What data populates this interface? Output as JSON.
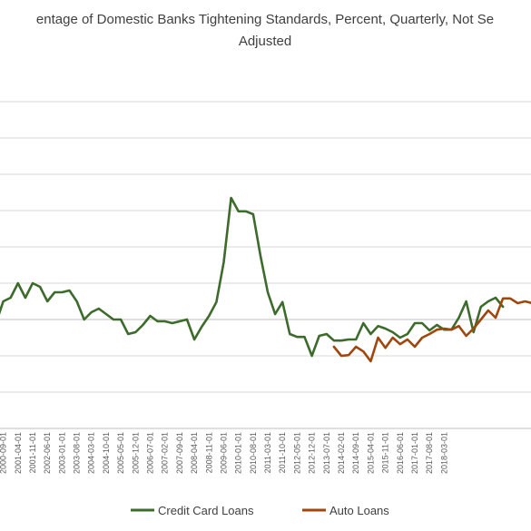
{
  "chart_data": {
    "type": "line",
    "title_lines": [
      "entage of Domestic Banks Tightening Standards, Percent, Quarterly, Not Se",
      "Adjusted"
    ],
    "xlabel": "",
    "ylabel": "",
    "x_tick_labels": [
      "2000-09-01",
      "2001-04-01",
      "2001-11-01",
      "2002-06-01",
      "2003-01-01",
      "2003-08-01",
      "2004-03-01",
      "2004-10-01",
      "2005-05-01",
      "2005-12-01",
      "2006-07-01",
      "2007-02-01",
      "2007-09-01",
      "2008-04-01",
      "2008-11-01",
      "2009-06-01",
      "2010-01-01",
      "2010-08-01",
      "2011-03-01",
      "2011-10-01",
      "2012-05-01",
      "2012-12-01",
      "2013-07-01",
      "2014-02-01",
      "2014-09-01",
      "2015-04-01",
      "2015-11-01",
      "2016-06-01",
      "2017-01-01",
      "2017-08-01",
      "2018-03-01"
    ],
    "x_first_index": -1,
    "x_last_index": 72,
    "y_range": [
      -30,
      70
    ],
    "y_gridlines": [
      -20,
      -10,
      0,
      10,
      20,
      30,
      40,
      50,
      60
    ],
    "grid": true,
    "legend_position": "bottom",
    "series": [
      {
        "name": "Credit Card Loans",
        "color": "#3d6b2c",
        "start_index": -1,
        "values": [
          -1,
          5,
          6,
          10,
          6,
          10,
          9,
          5,
          7.5,
          7.5,
          8,
          5,
          0,
          2,
          3,
          1.5,
          0,
          0,
          -4,
          -3.5,
          -1.5,
          1,
          -0.5,
          -0.5,
          -1,
          -0.5,
          0,
          -5.5,
          -2,
          1,
          4.8,
          15.8,
          33.5,
          29.8,
          29.8,
          29,
          17.5,
          7.5,
          1.5,
          4.8,
          -4,
          -4.8,
          -4.8,
          -10,
          -4.5,
          -4,
          -5.8,
          -5.8,
          -5.5,
          -5.5,
          -1,
          -4,
          -1.8,
          -2.5,
          -3.5,
          -5,
          -4,
          -1,
          -1,
          -3,
          -1.5,
          -2.8,
          -2.8,
          0.5,
          5,
          -3.5,
          3.5,
          5,
          6,
          3.5
        ]
      },
      {
        "name": "Auto Loans",
        "color": "#a0460f",
        "start_index": 45,
        "values": [
          -7.5,
          -10,
          -9.8,
          -7.5,
          -8.8,
          -11.5,
          -5,
          -7.8,
          -5,
          -6.8,
          -5.5,
          -7.5,
          -5,
          -4,
          -2.8,
          -2.5,
          -2.8,
          -1.8,
          -4.5,
          -2.5,
          0,
          2.5,
          0.5,
          5.8,
          5.8,
          4.5,
          5,
          4.5
        ]
      }
    ]
  }
}
